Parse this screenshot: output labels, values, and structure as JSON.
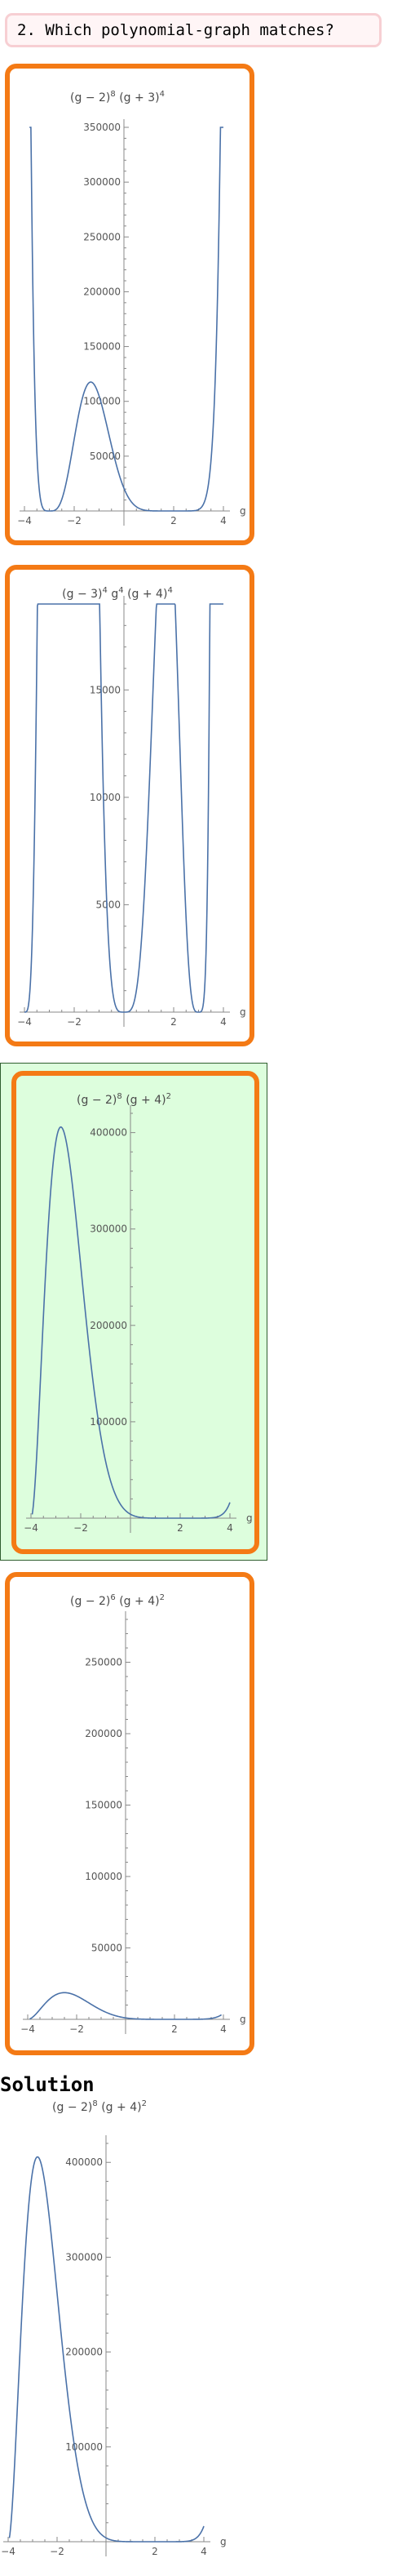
{
  "question": {
    "text": "2. Which polynomial-graph matches?"
  },
  "options": [
    {
      "title": {
        "base": "(g − 2)",
        "e1": "8",
        "mid": " (g + 3)",
        "e2": "4",
        "mid2": "",
        "e3": ""
      },
      "correct": false
    },
    {
      "title": {
        "base": "(g − 3)",
        "e1": "4",
        "mid": " g",
        "e2": "4",
        "mid2": " (g + 4)",
        "e3": "4"
      },
      "correct": false
    },
    {
      "title": {
        "base": "(g − 2)",
        "e1": "8",
        "mid": " (g + 4)",
        "e2": "2",
        "mid2": "",
        "e3": ""
      },
      "correct": true
    },
    {
      "title": {
        "base": "(g − 2)",
        "e1": "6",
        "mid": " (g + 4)",
        "e2": "2",
        "mid2": "",
        "e3": ""
      },
      "correct": false
    }
  ],
  "solution": {
    "heading": "Solution",
    "title": {
      "base": "(g − 2)",
      "e1": "8",
      "mid": " (g + 4)",
      "e2": "2",
      "mid2": "",
      "e3": ""
    }
  },
  "chart_data": [
    {
      "type": "line",
      "title": "(g − 2)^8 (g + 3)^4",
      "xlabel": "g",
      "x_range": [
        -4,
        4
      ],
      "ylim": [
        0,
        350000
      ],
      "xticks": [
        -4,
        -2,
        2,
        4
      ],
      "yticks": [
        50000,
        100000,
        150000,
        200000,
        250000,
        300000,
        350000
      ],
      "ytick_labels": [
        "50000",
        "100000",
        "150000",
        "200000",
        "250000",
        "300000",
        "350000"
      ],
      "line_color": "#4a71a8"
    },
    {
      "type": "line",
      "title": "(g − 3)^4 g^4 (g + 4)^4",
      "xlabel": "g",
      "x_range": [
        -4,
        4
      ],
      "ylim": [
        0,
        19000
      ],
      "xticks": [
        -4,
        -2,
        2,
        4
      ],
      "yticks": [
        5000,
        10000,
        15000
      ],
      "ytick_labels": [
        "5000",
        "10000",
        "15000"
      ],
      "line_color": "#4a71a8"
    },
    {
      "type": "line",
      "title": "(g − 2)^8 (g + 4)^2",
      "xlabel": "g",
      "x_range": [
        -4,
        4
      ],
      "ylim": [
        0,
        420000
      ],
      "xticks": [
        -4,
        -2,
        2,
        4
      ],
      "yticks": [
        100000,
        200000,
        300000,
        400000
      ],
      "ytick_labels": [
        "100000",
        "200000",
        "300000",
        "400000"
      ],
      "line_color": "#4a71a8"
    },
    {
      "type": "line",
      "title": "(g − 2)^6 (g + 4)^2",
      "xlabel": "g",
      "x_range": [
        -4,
        4
      ],
      "ylim": [
        0,
        280000
      ],
      "xticks": [
        -4,
        -2,
        2,
        4
      ],
      "yticks": [
        50000,
        100000,
        150000,
        200000,
        250000
      ],
      "ytick_labels": [
        "50000",
        "100000",
        "150000",
        "200000",
        "250000"
      ],
      "line_color": "#4a71a8"
    },
    {
      "type": "line",
      "title": "(g − 2)^8 (g + 4)^2",
      "xlabel": "g",
      "x_range": [
        -4,
        4
      ],
      "ylim": [
        0,
        420000
      ],
      "xticks": [
        -4,
        -2,
        2,
        4
      ],
      "yticks": [
        100000,
        200000,
        300000,
        400000
      ],
      "ytick_labels": [
        "100000",
        "200000",
        "300000",
        "400000"
      ],
      "line_color": "#4a71a8"
    }
  ]
}
